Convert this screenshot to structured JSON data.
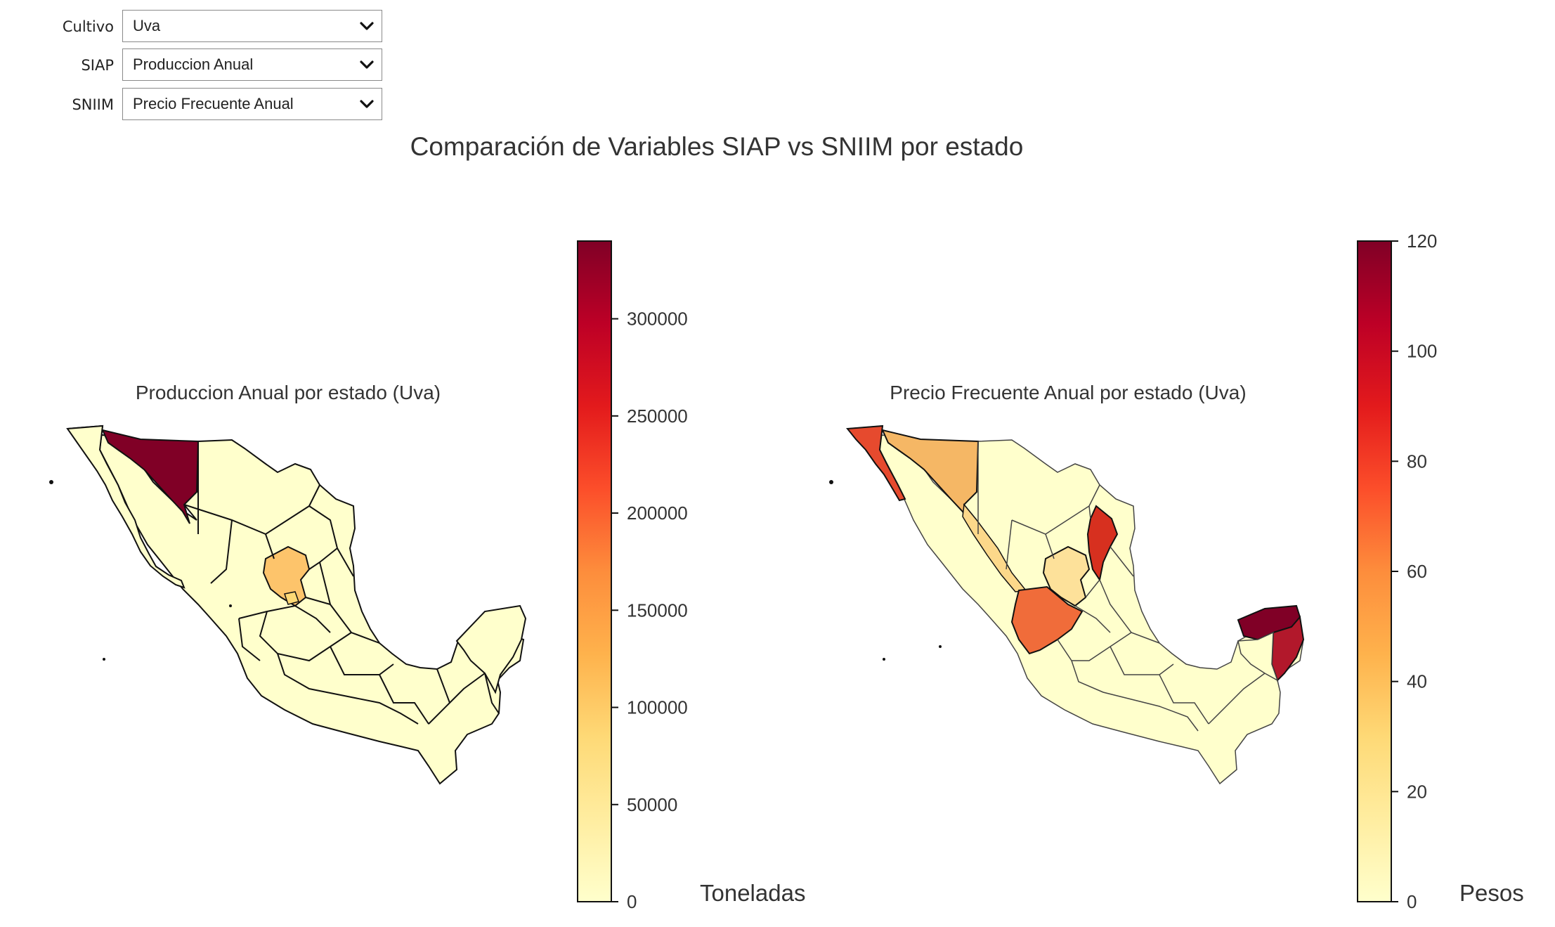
{
  "controls": [
    {
      "label": "Cultivo",
      "value": "Uva"
    },
    {
      "label": "SIAP",
      "value": "Produccion Anual"
    },
    {
      "label": "SNIIM",
      "value": "Precio Frecuente Anual"
    }
  ],
  "main_title": "Comparación de Variables SIAP vs SNIIM por estado",
  "maps": [
    {
      "title": "Produccion Anual por estado (Uva)",
      "colorbar_label": "Toneladas",
      "colormap": "YlOrRd",
      "vmin": 0,
      "vmax": 340000,
      "ticks": [
        0,
        50000,
        100000,
        150000,
        200000,
        250000,
        300000
      ],
      "tick_labels": [
        "0",
        "50000",
        "100000",
        "150000",
        "200000",
        "250000",
        "300000"
      ],
      "highlighted_regions": [
        {
          "region": "Sonora",
          "value": 330000
        },
        {
          "region": "Zacatecas",
          "value": 95000
        },
        {
          "region": "Aguascalientes",
          "value": 65000
        }
      ]
    },
    {
      "title": "Precio Frecuente Anual por estado (Uva)",
      "colorbar_label": "Pesos",
      "colormap": "YlOrRd",
      "vmin": 0,
      "vmax": 120,
      "ticks": [
        0,
        20,
        40,
        60,
        80,
        100,
        120
      ],
      "tick_labels": [
        "0",
        "20",
        "40",
        "60",
        "80",
        "100",
        "120"
      ],
      "highlighted_regions": [
        {
          "region": "Baja California",
          "value": 78
        },
        {
          "region": "Sonora",
          "value": 45
        },
        {
          "region": "Sinaloa",
          "value": 30
        },
        {
          "region": "Zacatecas",
          "value": 35
        },
        {
          "region": "Nuevo Leon",
          "value": 92
        },
        {
          "region": "Jalisco",
          "value": 70
        },
        {
          "region": "Yucatan",
          "value": 118
        },
        {
          "region": "Quintana Roo",
          "value": 105
        }
      ]
    }
  ]
}
